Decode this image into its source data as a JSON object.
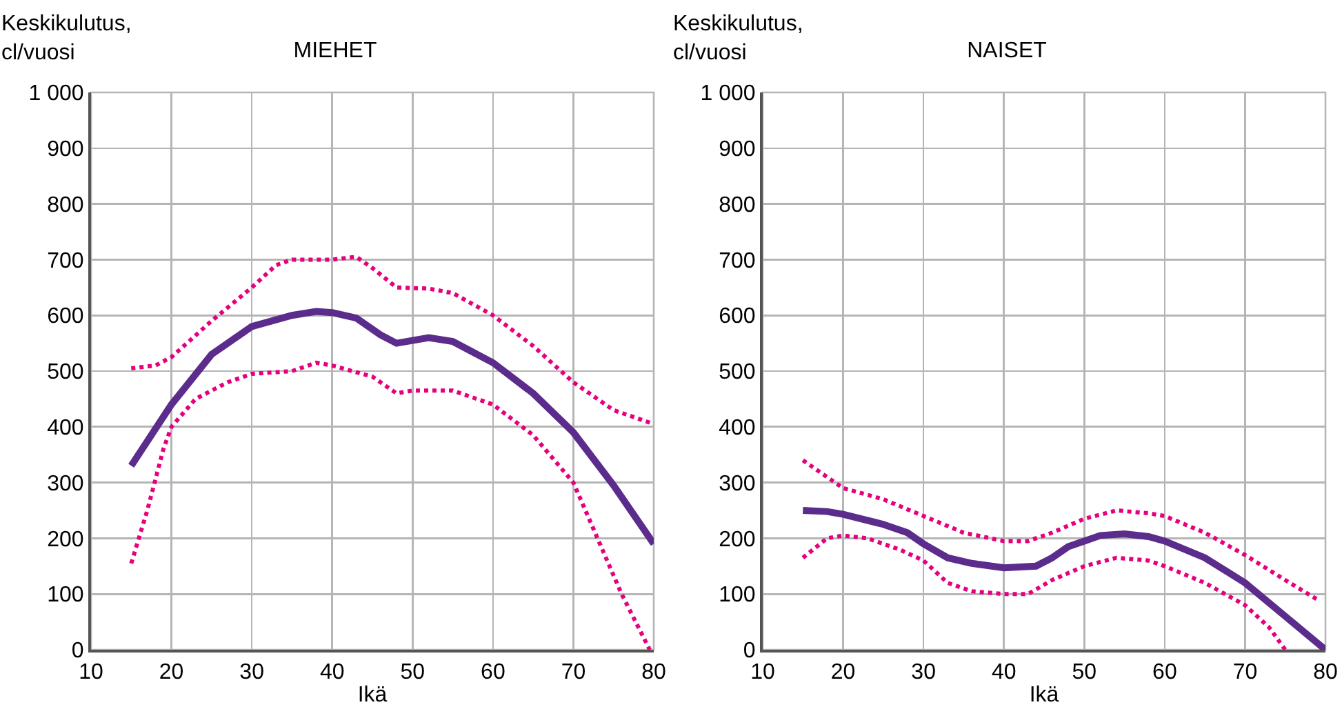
{
  "chart_data": [
    {
      "type": "line",
      "title": "MIEHET",
      "xlabel": "Ikä",
      "ylabel": "Keskikulutus,\ncl/vuosi",
      "xlim": [
        10,
        80
      ],
      "xticks": [
        10,
        20,
        30,
        40,
        50,
        60,
        70,
        80
      ],
      "ylim": [
        0,
        1000
      ],
      "yticks": [
        0,
        100,
        200,
        300,
        400,
        500,
        600,
        700,
        800,
        900,
        {
          "value": 1000,
          "label": "1 000"
        }
      ],
      "grid": true,
      "marker": "none",
      "series": [
        {
          "color": "#e6007e",
          "line_style": "dotted",
          "x": [
            15,
            18,
            20,
            25,
            30,
            33,
            35,
            40,
            43,
            45,
            48,
            52,
            55,
            60,
            65,
            70,
            75,
            80
          ],
          "values": [
            505,
            510,
            525,
            590,
            650,
            690,
            700,
            700,
            705,
            685,
            650,
            648,
            640,
            600,
            545,
            480,
            430,
            405
          ]
        },
        {
          "color": "#e6007e",
          "line_style": "dotted",
          "x": [
            15,
            17,
            19,
            20,
            23,
            27,
            30,
            35,
            38,
            40,
            45,
            48,
            50,
            55,
            60,
            65,
            70,
            73,
            76,
            79.5
          ],
          "values": [
            155,
            250,
            360,
            400,
            450,
            480,
            495,
            500,
            515,
            510,
            490,
            460,
            465,
            465,
            440,
            385,
            300,
            200,
            100,
            0
          ]
        },
        {
          "color": "#5b2c8c",
          "line_style": "solid",
          "x": [
            15,
            20,
            25,
            30,
            35,
            38,
            40,
            43,
            46,
            48,
            50,
            52,
            55,
            60,
            65,
            70,
            75,
            80
          ],
          "values": [
            330,
            440,
            530,
            580,
            600,
            607,
            605,
            595,
            565,
            550,
            555,
            560,
            553,
            515,
            460,
            390,
            295,
            190
          ]
        }
      ]
    },
    {
      "type": "line",
      "title": "NAISET",
      "xlabel": "Ikä",
      "ylabel": "Keskikulutus,\ncl/vuosi",
      "xlim": [
        10,
        80
      ],
      "xticks": [
        10,
        20,
        30,
        40,
        50,
        60,
        70,
        80
      ],
      "ylim": [
        0,
        1000
      ],
      "yticks": [
        0,
        100,
        200,
        300,
        400,
        500,
        600,
        700,
        800,
        900,
        {
          "value": 1000,
          "label": "1 000"
        }
      ],
      "grid": true,
      "marker": "none",
      "series": [
        {
          "color": "#e6007e",
          "line_style": "dotted",
          "x": [
            15,
            18,
            20,
            25,
            30,
            35,
            40,
            43,
            46,
            50,
            54,
            58,
            60,
            65,
            70,
            75,
            79
          ],
          "values": [
            340,
            310,
            290,
            270,
            240,
            210,
            195,
            195,
            210,
            235,
            250,
            245,
            240,
            210,
            170,
            125,
            90
          ]
        },
        {
          "color": "#e6007e",
          "line_style": "dotted",
          "x": [
            15,
            18,
            20,
            23,
            27,
            30,
            33,
            36,
            40,
            43,
            46,
            50,
            54,
            58,
            60,
            65,
            70,
            73,
            75
          ],
          "values": [
            165,
            200,
            205,
            200,
            180,
            160,
            120,
            105,
            100,
            100,
            125,
            150,
            165,
            160,
            150,
            120,
            80,
            40,
            0
          ]
        },
        {
          "color": "#5b2c8c",
          "line_style": "solid",
          "x": [
            15,
            18,
            20,
            25,
            28,
            30,
            33,
            36,
            40,
            44,
            46,
            48,
            50,
            52,
            55,
            58,
            60,
            65,
            70,
            75,
            80
          ],
          "values": [
            250,
            248,
            243,
            225,
            210,
            190,
            165,
            155,
            147,
            150,
            165,
            185,
            195,
            205,
            208,
            203,
            195,
            165,
            120,
            60,
            0
          ]
        }
      ]
    }
  ]
}
